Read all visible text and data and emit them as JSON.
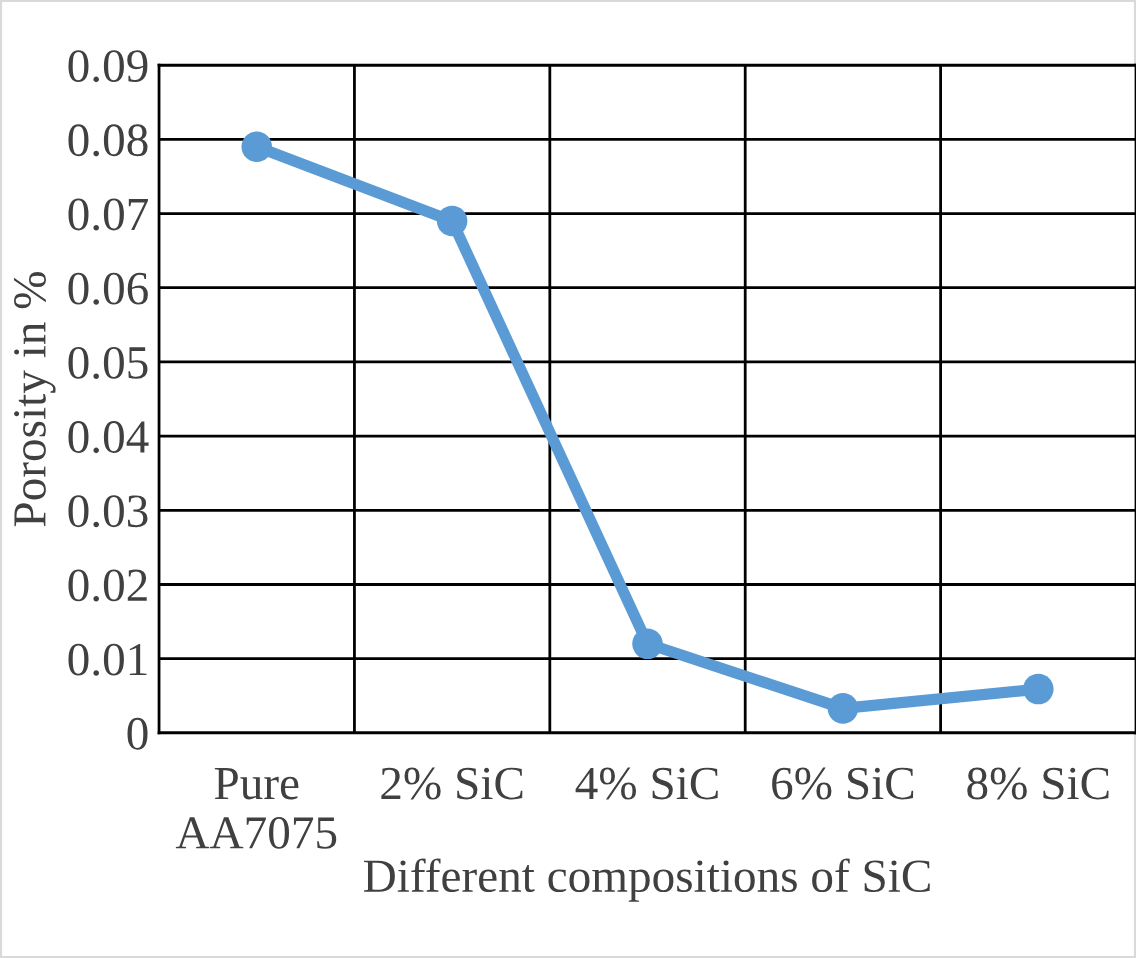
{
  "chart_data": {
    "type": "line",
    "categories": [
      "Pure\nAA7075",
      "2% SiC",
      "4% SiC",
      "6% SiC",
      "8% SiC"
    ],
    "series": [
      {
        "color": "#5b9bd5",
        "values": [
          0.079,
          0.069,
          0.012,
          0.0033,
          0.0059
        ]
      }
    ],
    "xlabel": "Different compositions of SiC",
    "ylabel": "Porosity in %",
    "ylim": [
      0,
      0.09
    ],
    "yticks": [
      {
        "value": 0,
        "label": "0"
      },
      0.01,
      0.02,
      0.03,
      0.04,
      0.05,
      0.06,
      0.07,
      0.08,
      0.09
    ],
    "grid": true,
    "marker": "circle",
    "line_style": "solid",
    "legend": false
  }
}
